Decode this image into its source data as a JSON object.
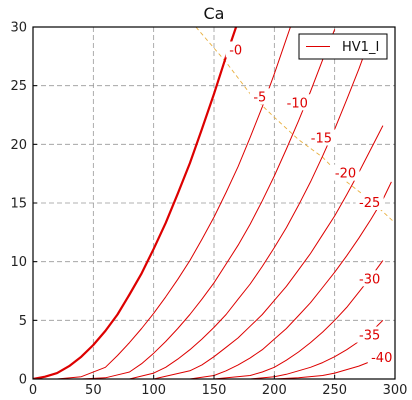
{
  "chart_data": {
    "type": "line",
    "title": "Ca",
    "xlabel": "",
    "ylabel": "",
    "xlim": [
      0,
      300
    ],
    "ylim": [
      0,
      30
    ],
    "xticks": [
      0,
      50,
      100,
      150,
      200,
      250,
      300
    ],
    "yticks": [
      0,
      5,
      10,
      15,
      20,
      25,
      30
    ],
    "grid": true,
    "legend": {
      "placement": "top-right",
      "entries": [
        "HV1_I"
      ]
    },
    "colors": {
      "curves": "#dd0000",
      "envelope": "#e8b040",
      "grid": "#999999",
      "axes": "#000000"
    },
    "series": [
      {
        "name": "HV1_I",
        "label": "-0",
        "emphasis": true,
        "x": [
          0,
          10,
          20,
          30,
          40,
          50,
          60,
          70,
          80,
          90,
          100,
          110,
          120,
          130,
          140,
          150,
          160,
          170,
          175
        ],
        "y": [
          0,
          0.2,
          0.5,
          1.1,
          1.9,
          2.9,
          4.1,
          5.5,
          7.2,
          9.0,
          11.1,
          13.3,
          15.8,
          18.4,
          21.3,
          24.3,
          27.5,
          30.5,
          32.2
        ]
      },
      {
        "label": "-5",
        "x": [
          0,
          20,
          40,
          60,
          70,
          80,
          90,
          100,
          110,
          120,
          130,
          140,
          150,
          160,
          170,
          180,
          190,
          200,
          210,
          220
        ],
        "y": [
          0,
          0,
          0.2,
          1.0,
          2.0,
          3.1,
          4.3,
          5.6,
          7.0,
          8.5,
          10.1,
          11.9,
          13.8,
          15.9,
          18.1,
          20.6,
          23.2,
          26.0,
          29.0,
          32.0
        ]
      },
      {
        "label": "-10",
        "x": [
          0,
          40,
          60,
          80,
          90,
          100,
          110,
          120,
          130,
          140,
          150,
          160,
          170,
          180,
          190,
          200,
          210,
          220,
          230,
          240,
          250
        ],
        "y": [
          0,
          0,
          0.1,
          0.6,
          1.3,
          2.2,
          3.2,
          4.3,
          5.5,
          6.8,
          8.2,
          9.8,
          11.4,
          13.2,
          15.2,
          17.3,
          19.6,
          22.0,
          24.5,
          27.2,
          29.8
        ]
      },
      {
        "label": "-15",
        "x": [
          0,
          80,
          100,
          110,
          120,
          130,
          140,
          150,
          160,
          170,
          180,
          190,
          200,
          210,
          220,
          230,
          240,
          250,
          260,
          270,
          275
        ],
        "y": [
          0,
          0,
          0.5,
          1.0,
          1.7,
          2.5,
          3.4,
          4.4,
          5.5,
          6.8,
          8.1,
          9.6,
          11.2,
          12.9,
          14.8,
          16.8,
          19.0,
          21.3,
          23.8,
          26.4,
          27.8
        ]
      },
      {
        "label": "-20",
        "x": [
          0,
          100,
          130,
          140,
          150,
          160,
          170,
          180,
          190,
          200,
          210,
          220,
          230,
          240,
          250,
          260,
          270,
          280,
          290
        ],
        "y": [
          0,
          0,
          0.7,
          1.2,
          1.9,
          2.7,
          3.5,
          4.5,
          5.5,
          6.7,
          7.9,
          9.3,
          10.7,
          12.3,
          13.9,
          15.7,
          17.6,
          19.6,
          21.6
        ]
      },
      {
        "label": "-25",
        "x": [
          0,
          130,
          150,
          160,
          170,
          180,
          190,
          200,
          210,
          220,
          230,
          240,
          250,
          260,
          270,
          280,
          290,
          297
        ],
        "y": [
          0,
          0,
          0.3,
          0.7,
          1.2,
          1.8,
          2.5,
          3.4,
          4.3,
          5.4,
          6.5,
          7.8,
          9.1,
          10.5,
          12.0,
          13.6,
          15.3,
          16.8
        ]
      },
      {
        "label": "-30",
        "x": [
          0,
          150,
          180,
          190,
          200,
          210,
          220,
          230,
          240,
          250,
          260,
          270,
          280,
          290
        ],
        "y": [
          0,
          0,
          0.3,
          0.6,
          1.0,
          1.6,
          2.3,
          3.1,
          4.0,
          5.0,
          6.1,
          7.4,
          8.7,
          10.1
        ]
      },
      {
        "label": "-35",
        "x": [
          0,
          180,
          200,
          210,
          220,
          230,
          240,
          250,
          260,
          270,
          280,
          290
        ],
        "y": [
          0,
          0,
          0.2,
          0.4,
          0.7,
          1.0,
          1.4,
          1.9,
          2.5,
          3.2,
          4.0,
          5.0
        ]
      },
      {
        "label": "-40",
        "x": [
          0,
          200,
          220,
          240,
          250,
          260,
          270,
          280,
          290
        ],
        "y": [
          0,
          0,
          0.1,
          0.3,
          0.5,
          0.8,
          1.1,
          1.5,
          1.9
        ]
      }
    ],
    "label_points": [
      {
        "text": "-0",
        "x": 168,
        "y": 28
      },
      {
        "text": "-5",
        "x": 188,
        "y": 24
      },
      {
        "text": "-10",
        "x": 219,
        "y": 23.5
      },
      {
        "text": "-15",
        "x": 239,
        "y": 20.5
      },
      {
        "text": "-20",
        "x": 259,
        "y": 17.5
      },
      {
        "text": "-25",
        "x": 279,
        "y": 15
      },
      {
        "text": "-30",
        "x": 279,
        "y": 8.5
      },
      {
        "text": "-35",
        "x": 279,
        "y": 3.7
      },
      {
        "text": "-40",
        "x": 289,
        "y": 1.8
      }
    ],
    "envelope": {
      "x": [
        135,
        160,
        180,
        200,
        220,
        240,
        260,
        280,
        300
      ],
      "y": [
        30,
        27,
        24.3,
        22.3,
        20.4,
        18.9,
        16.8,
        15.2,
        13.3
      ]
    }
  }
}
